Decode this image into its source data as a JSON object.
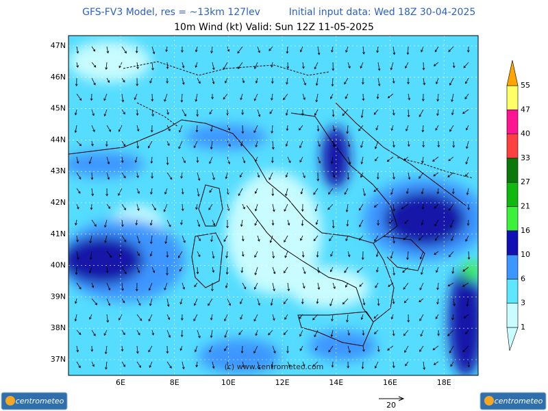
{
  "header": {
    "model": "GFS-FV3 Model, res = ~13km 127lev",
    "init": "Initial input data: Wed 18Z 30-04-2025",
    "field": "10m Wind (kt)  Valid: Sun 12Z 11-05-2025"
  },
  "lat_labels": [
    "47N",
    "46N",
    "45N",
    "44N",
    "43N",
    "42N",
    "41N",
    "40N",
    "39N",
    "38N",
    "37N"
  ],
  "lon_labels": [
    "6E",
    "8E",
    "10E",
    "12E",
    "14E",
    "16E",
    "18E"
  ],
  "legend": {
    "levels": [
      1,
      3,
      6,
      10,
      16,
      21,
      27,
      33,
      40,
      47,
      55
    ],
    "colors": [
      "#c8fcff",
      "#5ee6ff",
      "#3c96ff",
      "#1010b4",
      "#3cf03c",
      "#10b810",
      "#0a780a",
      "#ff4040",
      "#ff1493",
      "#ffff66",
      "#ffa500"
    ]
  },
  "watermark": "(c) www.centrometeo.com",
  "reference_vector": "20",
  "logo": "centrometeo"
}
